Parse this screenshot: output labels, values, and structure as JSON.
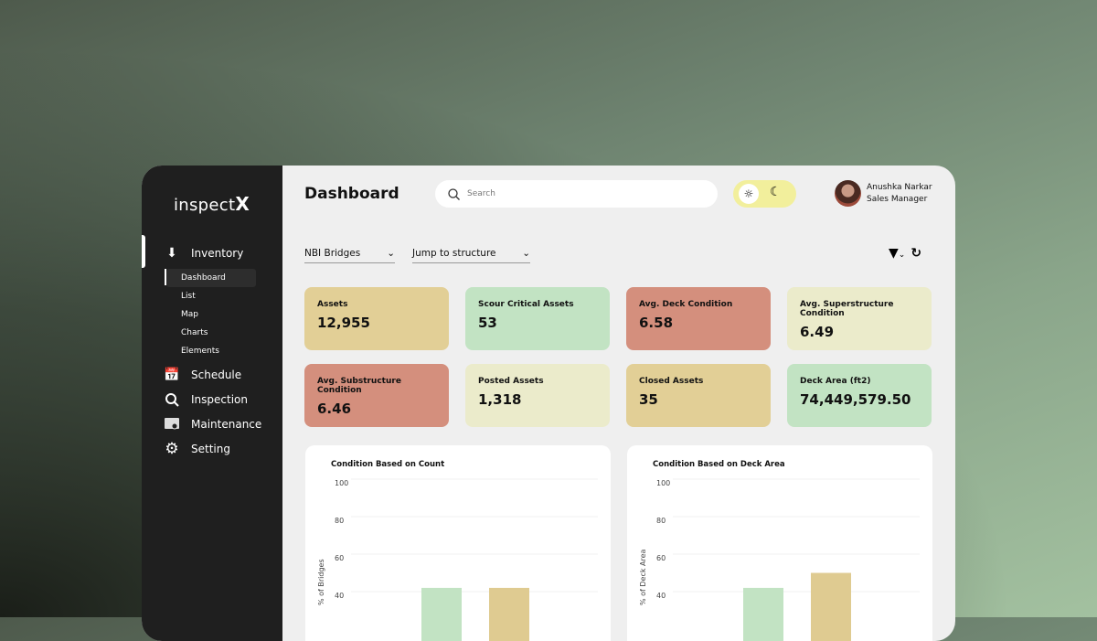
{
  "app": {
    "logo": "inspect",
    "logo_mark": "X"
  },
  "sidebar": {
    "items": [
      {
        "label": "Inventory",
        "icon": "sort-az-icon",
        "active": true,
        "sub": [
          "Dashboard",
          "List",
          "Map",
          "Charts",
          "Elements"
        ],
        "selected_sub": "Dashboard"
      },
      {
        "label": "Schedule",
        "icon": "calendar-icon"
      },
      {
        "label": "Inspection",
        "icon": "search-icon"
      },
      {
        "label": "Maintenance",
        "icon": "maintenance-icon"
      },
      {
        "label": "Setting",
        "icon": "gear-icon"
      }
    ]
  },
  "header": {
    "title": "Dashboard",
    "search_placeholder": "Search",
    "theme": "light",
    "user": {
      "name": "Anushka Narkar",
      "role": "Sales Manager"
    }
  },
  "filters": {
    "dataset": "NBI Bridges",
    "jump": "Jump to structure"
  },
  "cards": [
    {
      "label": "Assets",
      "value": "12,955",
      "color": "#e2cf96"
    },
    {
      "label": "Scour Critical Assets",
      "value": "53",
      "color": "#c2e3c3"
    },
    {
      "label": "Avg. Deck Condition",
      "value": "6.58",
      "color": "#d48f7d"
    },
    {
      "label": "Avg. Superstructure Condition",
      "value": "6.49",
      "color": "#ebebcb"
    },
    {
      "label": "Avg. Substructure Condition",
      "value": "6.46",
      "color": "#d48f7d"
    },
    {
      "label": "Posted Assets",
      "value": "1,318",
      "color": "#ebebcb"
    },
    {
      "label": "Closed Assets",
      "value": "35",
      "color": "#e2cf96"
    },
    {
      "label": "Deck Area (ft2)",
      "value": "74,449,579.50",
      "color": "#c2e3c3"
    }
  ],
  "chart_data": [
    {
      "type": "bar",
      "title": "Condition Based on Count",
      "ylabel": "% of Bridges",
      "yticks": [
        "100",
        "80",
        "60",
        "40"
      ],
      "ylim": [
        0,
        100
      ],
      "grid": true,
      "values": [
        42,
        42
      ],
      "colors": [
        "#c2e3c3",
        "#dfcb91"
      ]
    },
    {
      "type": "bar",
      "title": "Condition Based on Deck Area",
      "ylabel": "% of Deck Area",
      "yticks": [
        "100",
        "80",
        "60",
        "40"
      ],
      "ylim": [
        0,
        100
      ],
      "grid": true,
      "values": [
        42,
        50
      ],
      "colors": [
        "#c2e3c3",
        "#dfcb91"
      ]
    }
  ]
}
